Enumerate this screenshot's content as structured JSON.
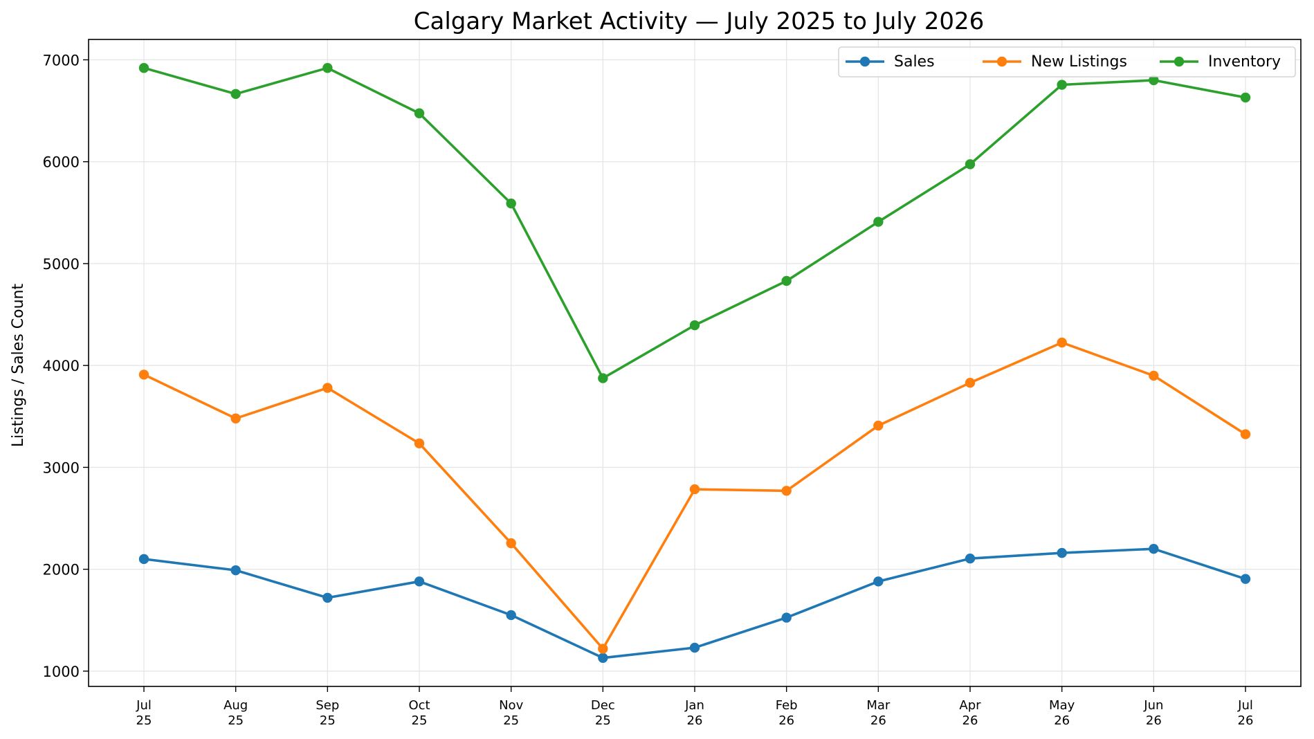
{
  "chart_data": {
    "type": "line",
    "title": "Calgary Market Activity — July 2025 to July 2026",
    "xlabel": "",
    "ylabel": "Listings / Sales Count",
    "categories": [
      [
        "Jul",
        "25"
      ],
      [
        "Aug",
        "25"
      ],
      [
        "Sep",
        "25"
      ],
      [
        "Oct",
        "25"
      ],
      [
        "Nov",
        "25"
      ],
      [
        "Dec",
        "25"
      ],
      [
        "Jan",
        "26"
      ],
      [
        "Feb",
        "26"
      ],
      [
        "Mar",
        "26"
      ],
      [
        "Apr",
        "26"
      ],
      [
        "May",
        "26"
      ],
      [
        "Jun",
        "26"
      ],
      [
        "Jul",
        "26"
      ]
    ],
    "ylim": [
      850,
      7200
    ],
    "yticks": [
      1000,
      2000,
      3000,
      4000,
      5000,
      6000,
      7000
    ],
    "grid": true,
    "legend_position": "top-right",
    "series": [
      {
        "name": "Sales",
        "color": "#1f77b4",
        "values": [
          2100,
          1990,
          1720,
          1880,
          1550,
          1130,
          1230,
          1525,
          1880,
          2105,
          2160,
          2200,
          1905
        ]
      },
      {
        "name": "New Listings",
        "color": "#ff7f0e",
        "values": [
          3910,
          3480,
          3780,
          3235,
          2255,
          1220,
          2785,
          2770,
          3410,
          3830,
          4225,
          3900,
          3325
        ]
      },
      {
        "name": "Inventory",
        "color": "#2ca02c",
        "values": [
          6920,
          6665,
          6920,
          6475,
          5590,
          3875,
          4395,
          4830,
          5410,
          5975,
          6755,
          6800,
          6630
        ]
      }
    ]
  }
}
